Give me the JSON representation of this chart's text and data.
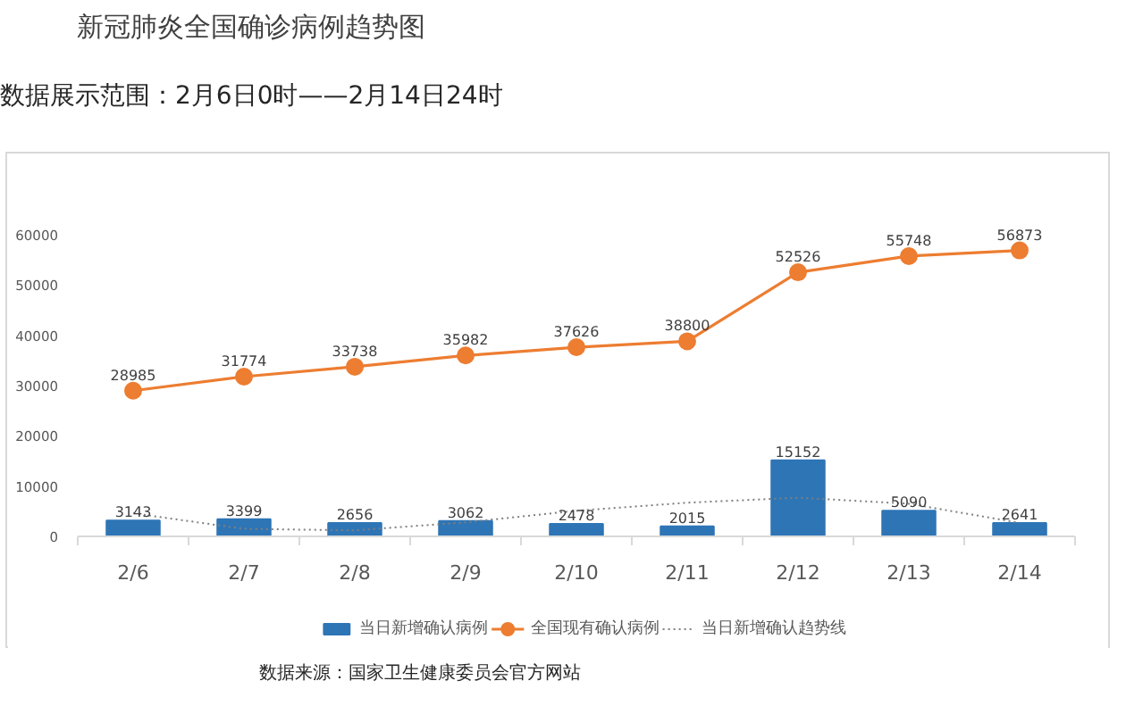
{
  "chart_data": {
    "type": "bar",
    "title": "新冠肺炎全国确诊病例趋势图",
    "subtitle": "数据展示范围：2月6日0时——2月14日24时",
    "categories": [
      "2/6",
      "2/7",
      "2/8",
      "2/9",
      "2/10",
      "2/11",
      "2/12",
      "2/13",
      "2/14"
    ],
    "ylim": [
      0,
      60000
    ],
    "yticks": [
      0,
      10000,
      20000,
      30000,
      40000,
      50000,
      60000
    ],
    "grid": false,
    "legend": "bottom",
    "series": [
      {
        "name": "当日新增确认病例",
        "color": "#2e75b6",
        "data_labels": true,
        "values": [
          3143,
          3399,
          2656,
          3062,
          2478,
          2015,
          15152,
          5090,
          2641
        ]
      },
      {
        "name": "全国现有确认病例",
        "type": "line",
        "color": "#ed7d31",
        "marker": "circle",
        "line_style": "solid",
        "data_labels": true,
        "values": [
          28985,
          31774,
          33738,
          35982,
          37626,
          38800,
          52526,
          55748,
          56873
        ]
      },
      {
        "name": "当日新增确认趋势线",
        "type": "line",
        "color": "#7f7f7f",
        "marker": "none",
        "line_style": "dotted",
        "values": [
          4600,
          1500,
          1200,
          2800,
          5100,
          6700,
          7700,
          6500,
          2700
        ]
      }
    ],
    "annotations": [
      "数据来源：国家卫生健康委员会官方网站"
    ]
  }
}
